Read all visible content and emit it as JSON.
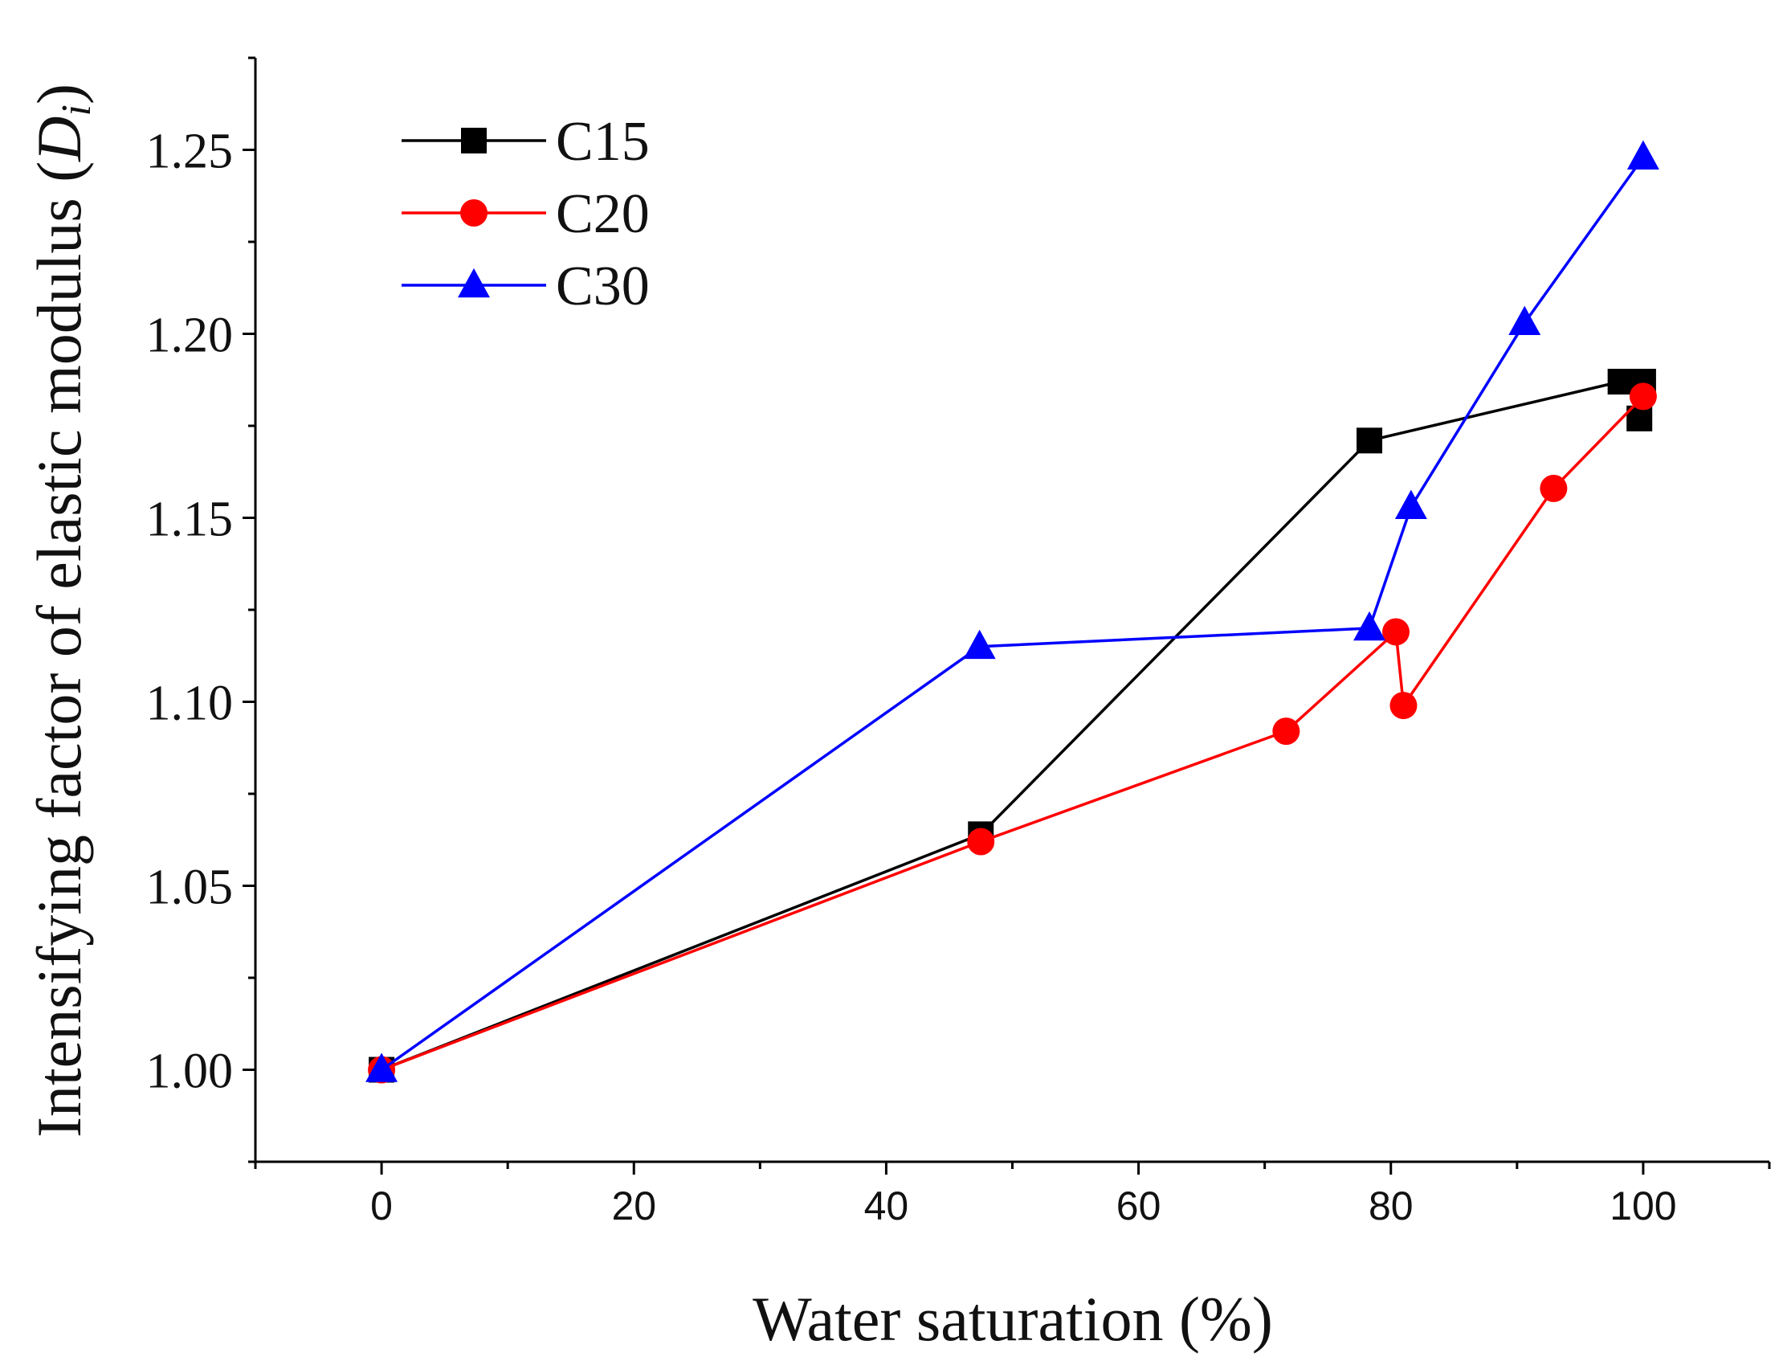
{
  "chart_data": {
    "type": "line",
    "title": "",
    "xlabel": "Water saturation (%)",
    "ylabel_prefix": "Intensifying factor of elastic modulus (",
    "ylabel_var": "D",
    "ylabel_sub": "i",
    "ylabel_suffix": ")",
    "xlim": [
      -10,
      110
    ],
    "ylim": [
      0.975,
      1.275
    ],
    "xticks": [
      0,
      20,
      40,
      60,
      80,
      100
    ],
    "xtick_labels": [
      "0",
      "20",
      "40",
      "60",
      "80",
      "100"
    ],
    "yticks": [
      1.0,
      1.05,
      1.1,
      1.15,
      1.2,
      1.25
    ],
    "ytick_labels": [
      "1.00",
      "1.05",
      "1.10",
      "1.15",
      "1.20",
      "1.25"
    ],
    "grid": false,
    "legend_position": "top-left",
    "series": [
      {
        "name": "C15",
        "color": "#000000",
        "marker": "square",
        "points": [
          [
            0,
            1.0
          ],
          [
            47.5,
            1.064
          ],
          [
            78.3,
            1.171
          ],
          [
            98.2,
            1.187
          ],
          [
            100,
            1.187
          ],
          [
            99.7,
            1.177
          ]
        ]
      },
      {
        "name": "C20",
        "color": "#ff0000",
        "marker": "circle",
        "points": [
          [
            0,
            1.0
          ],
          [
            47.5,
            1.062
          ],
          [
            71.7,
            1.092
          ],
          [
            80.4,
            1.119
          ],
          [
            81,
            1.099
          ],
          [
            92.9,
            1.158
          ],
          [
            100,
            1.183
          ]
        ]
      },
      {
        "name": "C30",
        "color": "#0000ff",
        "marker": "triangle",
        "points": [
          [
            0,
            1.0
          ],
          [
            47.4,
            1.115
          ],
          [
            78.3,
            1.12
          ],
          [
            81.6,
            1.153
          ],
          [
            90.6,
            1.203
          ],
          [
            100,
            1.248
          ]
        ]
      }
    ]
  }
}
